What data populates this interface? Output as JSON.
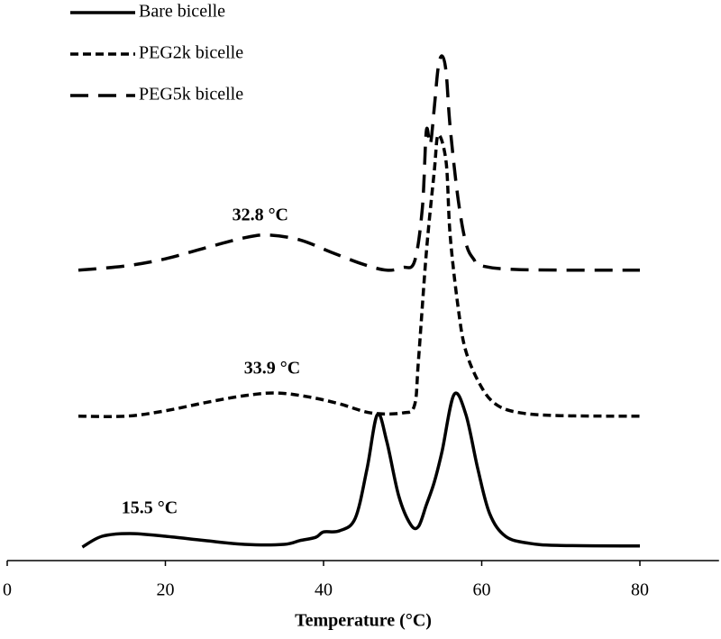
{
  "chart_data": {
    "type": "line",
    "xlabel": "Temperature (°C)",
    "xlim": [
      0,
      90
    ],
    "xticks": [
      0,
      20,
      40,
      60,
      80
    ],
    "ylim": [
      0,
      100
    ],
    "legend": "upper left",
    "annotations": [
      "15.5 °C",
      "33.9 °C",
      "32.8 °C"
    ],
    "series": [
      {
        "name": "Bare bicelle",
        "color": "#000000",
        "dash": "solid",
        "x": [
          9.5,
          12,
          15.5,
          20,
          25,
          30,
          35,
          37,
          39,
          40,
          42,
          44,
          45.5,
          46.8,
          48,
          49.5,
          51,
          52,
          53,
          54,
          55,
          56.5,
          58,
          59.5,
          61,
          63,
          66,
          70,
          80
        ],
        "values": [
          2.5,
          4.5,
          5,
          4.5,
          3.7,
          3,
          3,
          3.7,
          4.3,
          5.3,
          5.5,
          7.8,
          17,
          27,
          22,
          12,
          6.7,
          6.3,
          10.3,
          14.5,
          20.3,
          30.7,
          27,
          17,
          8.7,
          4.5,
          3.2,
          2.8,
          2.7
        ]
      },
      {
        "name": "PEG2k bicelle",
        "color": "#000000",
        "dash": "short",
        "x": [
          9,
          15,
          20,
          25,
          30,
          34,
          38,
          42,
          46,
          50,
          51.5,
          52,
          53,
          54,
          54.5,
          55.5,
          56,
          57,
          58,
          60,
          62,
          65,
          70,
          80
        ],
        "values": [
          26.7,
          26.7,
          27.7,
          29.2,
          30.5,
          31,
          30.3,
          29,
          27.3,
          27.3,
          28.7,
          37,
          57,
          72,
          78.7,
          73.7,
          60.3,
          47,
          38.7,
          32,
          28.7,
          27.3,
          26.8,
          26.7
        ]
      },
      {
        "name": "PEG5k bicelle",
        "color": "#000000",
        "dash": "long",
        "x": [
          9,
          15,
          20,
          25,
          30,
          33,
          37,
          41,
          45,
          48,
          50,
          51.5,
          52.5,
          53,
          53.5,
          54,
          54.5,
          55,
          55.5,
          56,
          57,
          58,
          59,
          60,
          65,
          80
        ],
        "values": [
          53.7,
          54.5,
          55.8,
          57.8,
          59.7,
          60.2,
          59.3,
          57,
          54.8,
          53.7,
          54.2,
          55.3,
          65.3,
          79.5,
          77,
          83.7,
          91.2,
          93.3,
          90.3,
          80.3,
          67,
          58.7,
          55.7,
          54.5,
          53.8,
          53.7
        ]
      }
    ]
  }
}
